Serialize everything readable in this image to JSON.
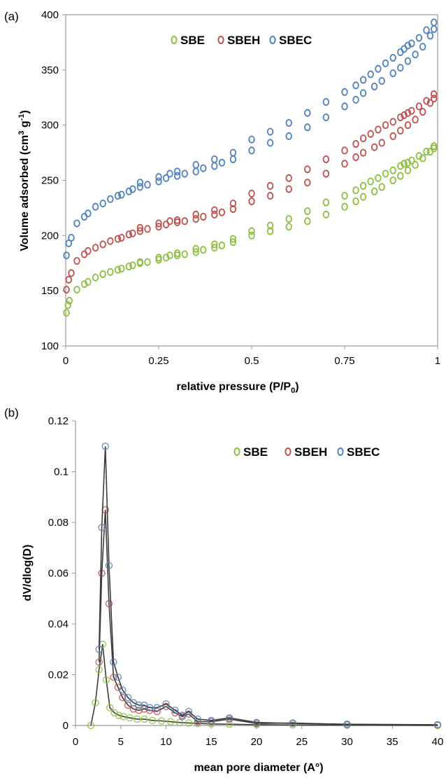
{
  "chart_data": [
    {
      "panel_label": "(a)",
      "type": "scatter",
      "xlabel_main": "relative pressure (P/P",
      "xlabel_sub": "0",
      "xlabel_end": ")",
      "ylabel_main": "Volume adsorbed (cm",
      "ylabel_sup1": "3",
      "ylabel_mid": " g",
      "ylabel_sup2": "-1",
      "ylabel_end": ")",
      "xlim": [
        0,
        1
      ],
      "ylim": [
        100,
        400
      ],
      "x_ticks": [
        0,
        0.25,
        0.5,
        0.75,
        1
      ],
      "x_tick_labels": [
        "0",
        "0.25",
        "0.5",
        "0.75",
        "1"
      ],
      "y_ticks": [
        100,
        150,
        200,
        250,
        300,
        350,
        400
      ],
      "y_tick_labels": [
        "100",
        "150",
        "200",
        "250",
        "300",
        "350",
        "400"
      ],
      "grid": false,
      "legend_position": "top-center",
      "series": [
        {
          "name": "SBE",
          "color": "#8cbf3f",
          "adsorption": [
            [
              0.002,
              130
            ],
            [
              0.006,
              137
            ],
            [
              0.01,
              141
            ],
            [
              0.03,
              151
            ],
            [
              0.05,
              156
            ],
            [
              0.06,
              158
            ],
            [
              0.08,
              162
            ],
            [
              0.1,
              165
            ],
            [
              0.12,
              167
            ],
            [
              0.14,
              169
            ],
            [
              0.15,
              170
            ],
            [
              0.17,
              172
            ],
            [
              0.18,
              173
            ],
            [
              0.2,
              175
            ],
            [
              0.22,
              176
            ],
            [
              0.25,
              178
            ],
            [
              0.27,
              180
            ],
            [
              0.3,
              182
            ],
            [
              0.32,
              183
            ],
            [
              0.35,
              185
            ],
            [
              0.37,
              187
            ],
            [
              0.4,
              189
            ],
            [
              0.42,
              191
            ],
            [
              0.45,
              194
            ],
            [
              0.5,
              200
            ],
            [
              0.55,
              204
            ],
            [
              0.6,
              208
            ],
            [
              0.65,
              213
            ],
            [
              0.7,
              219
            ],
            [
              0.75,
              226
            ],
            [
              0.78,
              231
            ],
            [
              0.8,
              235
            ],
            [
              0.83,
              240
            ],
            [
              0.85,
              244
            ],
            [
              0.88,
              250
            ],
            [
              0.9,
              254
            ],
            [
              0.92,
              259
            ],
            [
              0.94,
              264
            ],
            [
              0.96,
              270
            ],
            [
              0.98,
              276
            ],
            [
              0.99,
              279
            ]
          ],
          "desorption": [
            [
              0.99,
              281
            ],
            [
              0.97,
              276
            ],
            [
              0.95,
              272
            ],
            [
              0.93,
              268
            ],
            [
              0.92,
              266
            ],
            [
              0.91,
              265
            ],
            [
              0.9,
              263
            ],
            [
              0.88,
              259
            ],
            [
              0.86,
              256
            ],
            [
              0.84,
              252
            ],
            [
              0.82,
              249
            ],
            [
              0.8,
              245
            ],
            [
              0.78,
              241
            ],
            [
              0.75,
              236
            ],
            [
              0.7,
              230
            ],
            [
              0.65,
              222
            ],
            [
              0.6,
              215
            ],
            [
              0.55,
              209
            ],
            [
              0.5,
              204
            ],
            [
              0.45,
              197
            ],
            [
              0.4,
              192
            ],
            [
              0.35,
              188
            ],
            [
              0.3,
              184
            ],
            [
              0.28,
              182
            ],
            [
              0.25,
              180
            ],
            [
              0.2,
              176
            ]
          ]
        },
        {
          "name": "SBEH",
          "color": "#c0504d",
          "adsorption": [
            [
              0.002,
              151
            ],
            [
              0.008,
              160
            ],
            [
              0.015,
              166
            ],
            [
              0.03,
              177
            ],
            [
              0.05,
              183
            ],
            [
              0.06,
              186
            ],
            [
              0.08,
              189
            ],
            [
              0.1,
              192
            ],
            [
              0.12,
              195
            ],
            [
              0.14,
              197
            ],
            [
              0.15,
              198
            ],
            [
              0.17,
              201
            ],
            [
              0.18,
              202
            ],
            [
              0.2,
              204
            ],
            [
              0.22,
              206
            ],
            [
              0.25,
              208
            ],
            [
              0.27,
              210
            ],
            [
              0.3,
              212
            ],
            [
              0.32,
              213
            ],
            [
              0.35,
              215
            ],
            [
              0.37,
              217
            ],
            [
              0.4,
              219
            ],
            [
              0.42,
              221
            ],
            [
              0.45,
              224
            ],
            [
              0.5,
              231
            ],
            [
              0.55,
              236
            ],
            [
              0.6,
              242
            ],
            [
              0.65,
              248
            ],
            [
              0.7,
              256
            ],
            [
              0.75,
              265
            ],
            [
              0.78,
              271
            ],
            [
              0.8,
              275
            ],
            [
              0.83,
              280
            ],
            [
              0.85,
              284
            ],
            [
              0.88,
              290
            ],
            [
              0.9,
              295
            ],
            [
              0.92,
              300
            ],
            [
              0.94,
              305
            ],
            [
              0.96,
              312
            ],
            [
              0.98,
              320
            ],
            [
              0.99,
              324
            ]
          ],
          "desorption": [
            [
              0.99,
              328
            ],
            [
              0.97,
              322
            ],
            [
              0.95,
              317
            ],
            [
              0.93,
              313
            ],
            [
              0.92,
              311
            ],
            [
              0.91,
              309
            ],
            [
              0.9,
              307
            ],
            [
              0.88,
              303
            ],
            [
              0.86,
              300
            ],
            [
              0.84,
              296
            ],
            [
              0.82,
              292
            ],
            [
              0.8,
              288
            ],
            [
              0.78,
              283
            ],
            [
              0.75,
              277
            ],
            [
              0.7,
              269
            ],
            [
              0.65,
              260
            ],
            [
              0.6,
              252
            ],
            [
              0.55,
              245
            ],
            [
              0.5,
              238
            ],
            [
              0.45,
              229
            ],
            [
              0.4,
              223
            ],
            [
              0.35,
              219
            ],
            [
              0.3,
              214
            ],
            [
              0.28,
              213
            ],
            [
              0.25,
              211
            ],
            [
              0.2,
              207
            ]
          ]
        },
        {
          "name": "SBEC",
          "color": "#4f81bd",
          "adsorption": [
            [
              0.002,
              182
            ],
            [
              0.008,
              193
            ],
            [
              0.015,
              198
            ],
            [
              0.03,
              211
            ],
            [
              0.05,
              217
            ],
            [
              0.06,
              220
            ],
            [
              0.08,
              226
            ],
            [
              0.1,
              229
            ],
            [
              0.12,
              233
            ],
            [
              0.14,
              236
            ],
            [
              0.15,
              237
            ],
            [
              0.17,
              240
            ],
            [
              0.18,
              242
            ],
            [
              0.2,
              244
            ],
            [
              0.22,
              246
            ],
            [
              0.25,
              249
            ],
            [
              0.27,
              252
            ],
            [
              0.3,
              254
            ],
            [
              0.32,
              256
            ],
            [
              0.35,
              258
            ],
            [
              0.37,
              261
            ],
            [
              0.4,
              263
            ],
            [
              0.42,
              266
            ],
            [
              0.45,
              269
            ],
            [
              0.5,
              277
            ],
            [
              0.55,
              284
            ],
            [
              0.6,
              290
            ],
            [
              0.65,
              298
            ],
            [
              0.7,
              307
            ],
            [
              0.75,
              317
            ],
            [
              0.78,
              323
            ],
            [
              0.8,
              329
            ],
            [
              0.83,
              335
            ],
            [
              0.85,
              340
            ],
            [
              0.88,
              347
            ],
            [
              0.9,
              352
            ],
            [
              0.92,
              358
            ],
            [
              0.94,
              364
            ],
            [
              0.96,
              371
            ],
            [
              0.98,
              381
            ],
            [
              0.99,
              387
            ]
          ],
          "desorption": [
            [
              0.99,
              393
            ],
            [
              0.97,
              386
            ],
            [
              0.95,
              379
            ],
            [
              0.93,
              374
            ],
            [
              0.92,
              372
            ],
            [
              0.91,
              369
            ],
            [
              0.9,
              366
            ],
            [
              0.88,
              361
            ],
            [
              0.86,
              356
            ],
            [
              0.84,
              351
            ],
            [
              0.82,
              346
            ],
            [
              0.8,
              341
            ],
            [
              0.78,
              336
            ],
            [
              0.75,
              330
            ],
            [
              0.7,
              321
            ],
            [
              0.65,
              311
            ],
            [
              0.6,
              302
            ],
            [
              0.55,
              294
            ],
            [
              0.5,
              287
            ],
            [
              0.45,
              275
            ],
            [
              0.4,
              269
            ],
            [
              0.35,
              264
            ],
            [
              0.3,
              258
            ],
            [
              0.28,
              256
            ],
            [
              0.25,
              253
            ],
            [
              0.2,
              248
            ]
          ]
        }
      ]
    },
    {
      "panel_label": "(b)",
      "type": "line",
      "xlabel": "mean pore diameter (A°)",
      "ylabel": "dV/dlog(D)",
      "xlim": [
        0,
        40
      ],
      "ylim": [
        0,
        0.12
      ],
      "x_ticks": [
        0,
        5,
        10,
        15,
        20,
        25,
        30,
        35,
        40
      ],
      "x_tick_labels": [
        "0",
        "5",
        "10",
        "15",
        "20",
        "25",
        "30",
        "35",
        "40"
      ],
      "y_ticks": [
        0,
        0.02,
        0.04,
        0.06,
        0.08,
        0.1,
        0.12
      ],
      "y_tick_labels": [
        "0",
        "0.02",
        "0.04",
        "0.06",
        "0.08",
        "0.1",
        "0.12"
      ],
      "grid": false,
      "legend_position": "top-right",
      "series": [
        {
          "name": "SBE",
          "color": "#8cbf3f",
          "x": [
            1.7,
            2.2,
            2.6,
            3.0,
            3.4,
            3.8,
            4.3,
            4.8,
            5.3,
            6.0,
            6.8,
            7.6,
            8.5,
            9.5,
            10.5,
            11.5,
            12.5,
            13.5,
            15.0,
            17.0,
            20.0,
            24.0,
            30.0,
            40.0
          ],
          "values": [
            0.0,
            0.009,
            0.022,
            0.032,
            0.018,
            0.007,
            0.005,
            0.004,
            0.0035,
            0.003,
            0.0025,
            0.0025,
            0.002,
            0.0018,
            0.0015,
            0.0012,
            0.001,
            0.0008,
            0.0006,
            0.0005,
            0.0003,
            0.0002,
            0.0001,
            0.0
          ]
        },
        {
          "name": "SBEH",
          "color": "#c0504d",
          "x": [
            2.6,
            2.9,
            3.3,
            3.7,
            4.2,
            4.7,
            5.2,
            5.8,
            6.4,
            7.0,
            7.6,
            8.2,
            9.0,
            10.0,
            11.0,
            11.8,
            12.5,
            13.5,
            15.0,
            17.0,
            20.0,
            24.0,
            30.0,
            40.0
          ],
          "values": [
            0.025,
            0.06,
            0.085,
            0.048,
            0.019,
            0.015,
            0.011,
            0.008,
            0.0065,
            0.006,
            0.0065,
            0.006,
            0.0055,
            0.0075,
            0.005,
            0.0035,
            0.0045,
            0.0015,
            0.0015,
            0.0025,
            0.0008,
            0.001,
            0.0004,
            0.0002
          ]
        },
        {
          "name": "SBEC",
          "color": "#4f81bd",
          "x": [
            2.6,
            2.9,
            3.3,
            3.7,
            4.2,
            4.7,
            5.2,
            5.8,
            6.4,
            7.0,
            7.6,
            8.2,
            9.0,
            10.0,
            11.0,
            11.8,
            12.5,
            13.5,
            15.0,
            17.0,
            20.0,
            24.0,
            30.0,
            40.0
          ],
          "values": [
            0.03,
            0.078,
            0.11,
            0.063,
            0.025,
            0.019,
            0.014,
            0.011,
            0.009,
            0.008,
            0.008,
            0.007,
            0.007,
            0.0085,
            0.006,
            0.004,
            0.0055,
            0.0025,
            0.002,
            0.003,
            0.0012,
            0.0008,
            0.0005,
            0.0003
          ]
        }
      ]
    }
  ]
}
